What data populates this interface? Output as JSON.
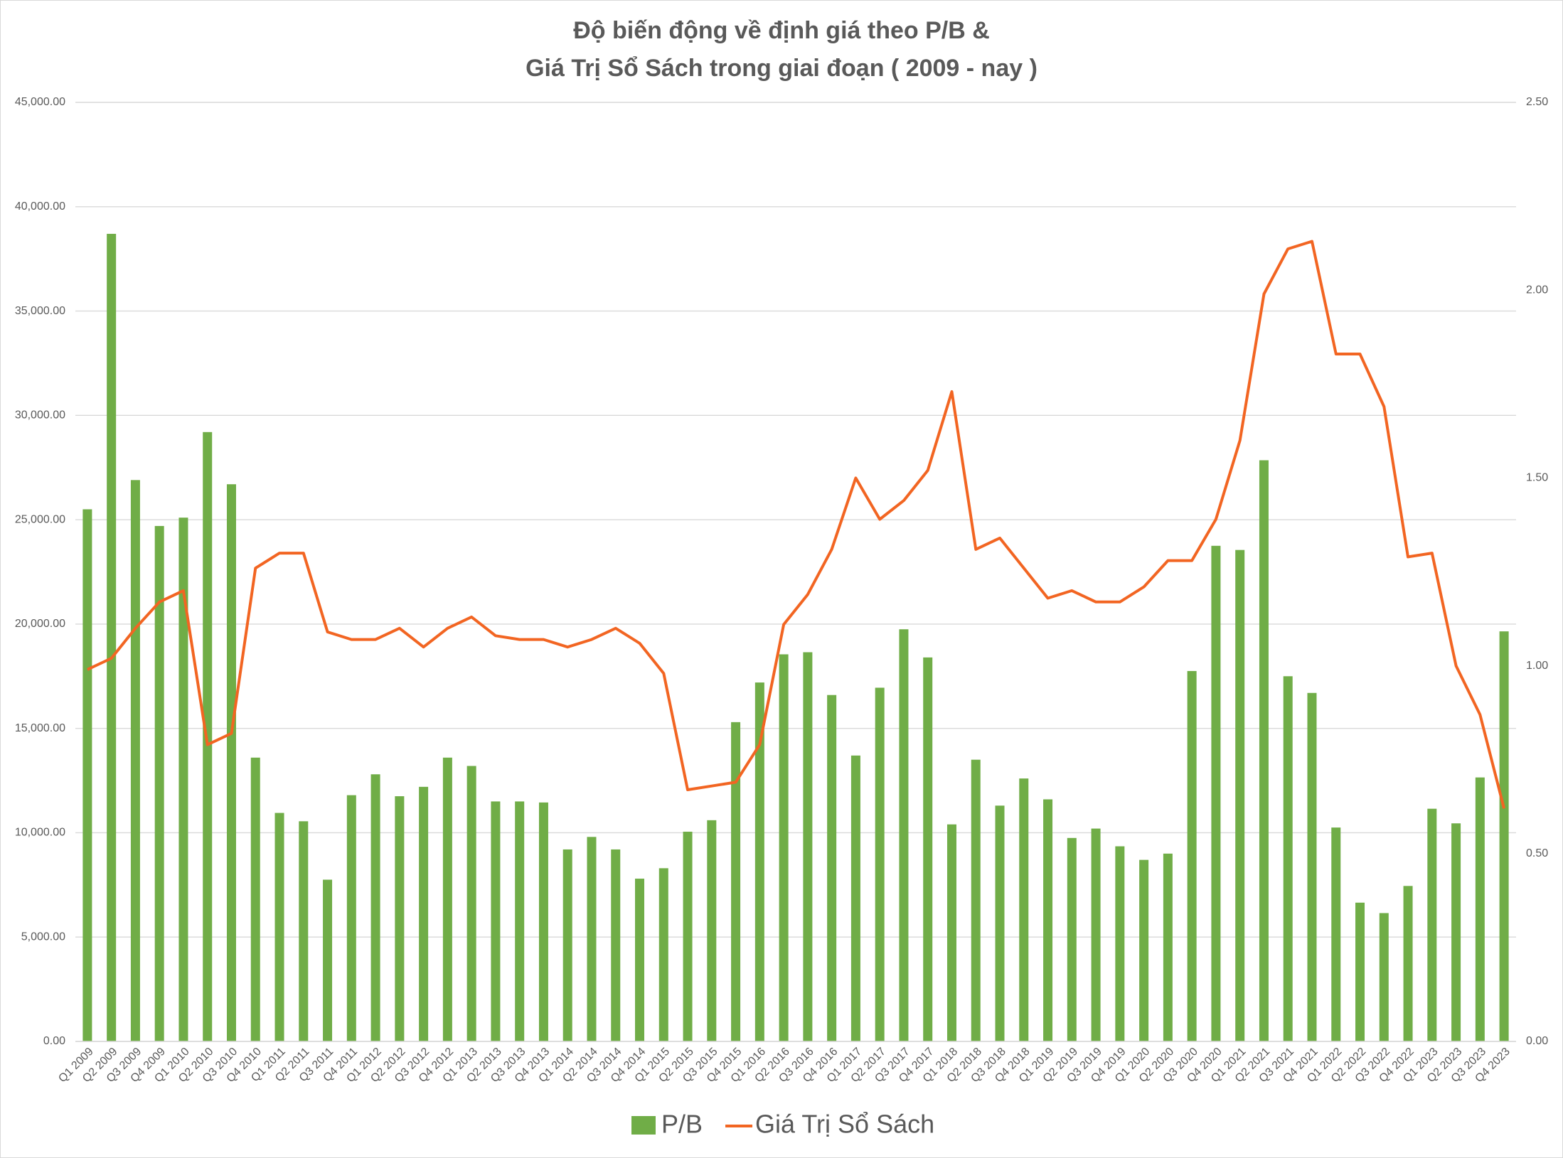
{
  "chart_data": {
    "type": "bar-line",
    "title": [
      "Độ biến động về định giá theo P/B &",
      "Giá Trị Sổ Sách trong giai đoạn ( 2009 - nay )"
    ],
    "categories": [
      "Q1 2009",
      "Q2 2009",
      "Q3 2009",
      "Q4 2009",
      "Q1 2010",
      "Q2 2010",
      "Q3 2010",
      "Q4 2010",
      "Q1 2011",
      "Q2 2011",
      "Q3 2011",
      "Q4 2011",
      "Q1 2012",
      "Q2 2012",
      "Q3 2012",
      "Q4 2012",
      "Q1 2013",
      "Q2 2013",
      "Q3 2013",
      "Q4 2013",
      "Q1 2014",
      "Q2 2014",
      "Q3 2014",
      "Q4 2014",
      "Q1 2015",
      "Q2 2015",
      "Q3 2015",
      "Q4 2015",
      "Q1 2016",
      "Q2 2016",
      "Q3 2016",
      "Q4 2016",
      "Q1 2017",
      "Q2 2017",
      "Q3 2017",
      "Q4 2017",
      "Q1 2018",
      "Q2 2018",
      "Q3 2018",
      "Q4 2018",
      "Q1 2019",
      "Q2 2019",
      "Q3 2019",
      "Q4 2019",
      "Q1 2020",
      "Q2 2020",
      "Q3 2020",
      "Q4 2020",
      "Q1 2021",
      "Q2 2021",
      "Q3 2021",
      "Q4 2021",
      "Q1 2022",
      "Q2 2022",
      "Q3 2022",
      "Q4 2022",
      "Q1 2023",
      "Q2 2023",
      "Q3 2023",
      "Q4 2023"
    ],
    "series": [
      {
        "name": "P/B",
        "type": "bar",
        "color": "#70ad47",
        "values": [
          25500,
          38700,
          26900,
          24700,
          25100,
          29200,
          26700,
          13600,
          10950,
          10550,
          7750,
          11800,
          12800,
          11750,
          12200,
          13600,
          13200,
          11500,
          11500,
          11450,
          9200,
          9800,
          9200,
          7800,
          8300,
          10050,
          10600,
          15300,
          17200,
          18550,
          18650,
          16600,
          13700,
          16950,
          19750,
          18400,
          10400,
          13500,
          11300,
          12600,
          11600,
          9750,
          10200,
          9350,
          8700,
          9000,
          17750,
          23750,
          23550,
          27850,
          17500,
          16700,
          10250,
          6650,
          6150,
          7450,
          11150,
          10450,
          12650,
          19650
        ]
      },
      {
        "name": "Giá Trị Sổ Sách",
        "type": "line",
        "axis": "y2",
        "color": "#f26522",
        "values": [
          0.99,
          1.02,
          1.1,
          1.17,
          1.2,
          0.79,
          0.82,
          1.26,
          1.3,
          1.3,
          1.09,
          1.07,
          1.07,
          1.1,
          1.05,
          1.1,
          1.13,
          1.08,
          1.07,
          1.07,
          1.05,
          1.07,
          1.1,
          1.06,
          0.98,
          0.67,
          0.68,
          0.69,
          0.79,
          1.11,
          1.19,
          1.31,
          1.5,
          1.39,
          1.44,
          1.52,
          1.73,
          1.31,
          1.34,
          1.26,
          1.18,
          1.2,
          1.17,
          1.17,
          1.21,
          1.28,
          1.28,
          1.39,
          1.6,
          1.99,
          2.11,
          2.13,
          1.83,
          1.83,
          1.69,
          1.29,
          1.3,
          1.0,
          0.87,
          0.62
        ]
      }
    ],
    "ylim": [
      0,
      45000
    ],
    "yticks": [
      {
        "value": 0,
        "label": "0.00"
      },
      {
        "value": 5000,
        "label": "5,000.00"
      },
      {
        "value": 10000,
        "label": "10,000.00"
      },
      {
        "value": 15000,
        "label": "15,000.00"
      },
      {
        "value": 20000,
        "label": "20,000.00"
      },
      {
        "value": 25000,
        "label": "25,000.00"
      },
      {
        "value": 30000,
        "label": "30,000.00"
      },
      {
        "value": 35000,
        "label": "35,000.00"
      },
      {
        "value": 40000,
        "label": "40,000.00"
      },
      {
        "value": 45000,
        "label": "45,000.00"
      }
    ],
    "y2lim": [
      0,
      2.5
    ],
    "y2ticks": [
      {
        "value": 0,
        "label": "0.00"
      },
      {
        "value": 0.5,
        "label": "0.50"
      },
      {
        "value": 1,
        "label": "1.00"
      },
      {
        "value": 1.5,
        "label": "1.50"
      },
      {
        "value": 2,
        "label": "2.00"
      },
      {
        "value": 2.5,
        "label": "2.50"
      }
    ],
    "grid": true,
    "legend": "bottom"
  }
}
